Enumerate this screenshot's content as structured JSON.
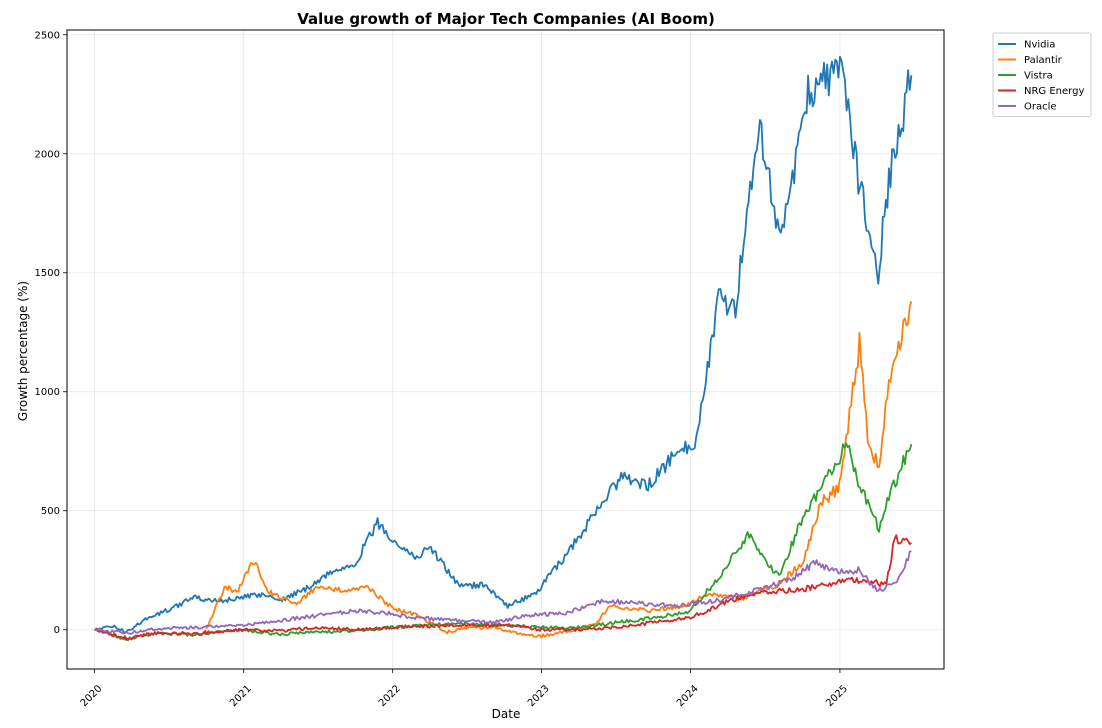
{
  "chart_data": {
    "type": "line",
    "title": "Value growth of Major Tech Companies (AI Boom)",
    "xlabel": "Date",
    "ylabel": "Growth percentage (%)",
    "xlim": [
      "2019-10-26",
      "2025-09-13"
    ],
    "ylim": [
      -165,
      2520
    ],
    "xticks": [
      "2020",
      "2021",
      "2022",
      "2023",
      "2024",
      "2025"
    ],
    "yticks": [
      0,
      500,
      1000,
      1500,
      2000,
      2500
    ],
    "grid": true,
    "legend_position": "upper-right-outside",
    "series": [
      {
        "name": "Nvidia",
        "color": "#1f77b4",
        "points": [
          [
            "2020-01-02",
            0
          ],
          [
            "2020-02-15",
            15
          ],
          [
            "2020-03-20",
            -10
          ],
          [
            "2020-05-01",
            40
          ],
          [
            "2020-07-01",
            85
          ],
          [
            "2020-09-01",
            135
          ],
          [
            "2020-10-15",
            120
          ],
          [
            "2020-12-15",
            130
          ],
          [
            "2021-02-15",
            150
          ],
          [
            "2021-04-01",
            125
          ],
          [
            "2021-06-01",
            170
          ],
          [
            "2021-08-01",
            240
          ],
          [
            "2021-10-01",
            280
          ],
          [
            "2021-11-25",
            450
          ],
          [
            "2022-01-01",
            380
          ],
          [
            "2022-03-01",
            300
          ],
          [
            "2022-04-01",
            350
          ],
          [
            "2022-06-15",
            180
          ],
          [
            "2022-08-15",
            190
          ],
          [
            "2022-10-10",
            100
          ],
          [
            "2022-12-15",
            150
          ],
          [
            "2023-02-15",
            280
          ],
          [
            "2023-05-25",
            520
          ],
          [
            "2023-07-15",
            640
          ],
          [
            "2023-09-15",
            600
          ],
          [
            "2023-11-15",
            720
          ],
          [
            "2024-01-15",
            800
          ],
          [
            "2024-03-10",
            1400
          ],
          [
            "2024-04-20",
            1350
          ],
          [
            "2024-06-15",
            2150
          ],
          [
            "2024-08-05",
            1650
          ],
          [
            "2024-09-15",
            1950
          ],
          [
            "2024-10-15",
            2250
          ],
          [
            "2024-11-15",
            2300
          ],
          [
            "2025-01-05",
            2350
          ],
          [
            "2025-02-15",
            1900
          ],
          [
            "2025-04-05",
            1500
          ],
          [
            "2025-05-01",
            1900
          ],
          [
            "2025-06-25",
            2330
          ]
        ]
      },
      {
        "name": "Palantir",
        "color": "#ff7f0e",
        "points": [
          [
            "2020-09-30",
            0
          ],
          [
            "2020-11-15",
            180
          ],
          [
            "2020-12-15",
            160
          ],
          [
            "2021-01-27",
            290
          ],
          [
            "2021-03-01",
            160
          ],
          [
            "2021-05-10",
            110
          ],
          [
            "2021-07-01",
            180
          ],
          [
            "2021-09-15",
            160
          ],
          [
            "2021-11-01",
            180
          ],
          [
            "2022-01-01",
            90
          ],
          [
            "2022-03-01",
            60
          ],
          [
            "2022-05-15",
            -10
          ],
          [
            "2022-07-01",
            10
          ],
          [
            "2022-09-01",
            10
          ],
          [
            "2022-12-20",
            -30
          ],
          [
            "2023-03-15",
            -5
          ],
          [
            "2023-05-15",
            30
          ],
          [
            "2023-06-20",
            100
          ],
          [
            "2023-09-15",
            80
          ],
          [
            "2023-12-15",
            100
          ],
          [
            "2024-02-15",
            150
          ],
          [
            "2024-05-01",
            130
          ],
          [
            "2024-08-01",
            190
          ],
          [
            "2024-10-01",
            280
          ],
          [
            "2024-11-15",
            530
          ],
          [
            "2024-12-31",
            600
          ],
          [
            "2025-02-18",
            1200
          ],
          [
            "2025-03-10",
            800
          ],
          [
            "2025-04-07",
            680
          ],
          [
            "2025-05-01",
            1050
          ],
          [
            "2025-06-25",
            1380
          ]
        ]
      },
      {
        "name": "Vistra",
        "color": "#2ca02c",
        "points": [
          [
            "2020-01-02",
            0
          ],
          [
            "2020-03-20",
            -40
          ],
          [
            "2020-06-01",
            -15
          ],
          [
            "2020-09-01",
            -20
          ],
          [
            "2021-01-01",
            0
          ],
          [
            "2021-04-01",
            -20
          ],
          [
            "2021-07-01",
            -10
          ],
          [
            "2021-10-01",
            -5
          ],
          [
            "2022-01-01",
            10
          ],
          [
            "2022-04-01",
            20
          ],
          [
            "2022-07-01",
            25
          ],
          [
            "2022-10-01",
            20
          ],
          [
            "2023-01-01",
            10
          ],
          [
            "2023-04-01",
            10
          ],
          [
            "2023-07-01",
            30
          ],
          [
            "2023-10-01",
            50
          ],
          [
            "2024-01-01",
            80
          ],
          [
            "2024-03-01",
            200
          ],
          [
            "2024-05-20",
            400
          ],
          [
            "2024-07-01",
            300
          ],
          [
            "2024-08-05",
            220
          ],
          [
            "2024-09-20",
            420
          ],
          [
            "2024-11-15",
            600
          ],
          [
            "2025-01-20",
            780
          ],
          [
            "2025-02-15",
            620
          ],
          [
            "2025-04-07",
            420
          ],
          [
            "2025-05-01",
            560
          ],
          [
            "2025-06-25",
            780
          ]
        ]
      },
      {
        "name": "NRG Energy",
        "color": "#d62728",
        "points": [
          [
            "2020-01-02",
            0
          ],
          [
            "2020-03-20",
            -35
          ],
          [
            "2020-06-01",
            -15
          ],
          [
            "2020-09-01",
            -15
          ],
          [
            "2021-01-01",
            0
          ],
          [
            "2021-04-01",
            -5
          ],
          [
            "2021-07-01",
            10
          ],
          [
            "2021-10-01",
            0
          ],
          [
            "2022-01-01",
            10
          ],
          [
            "2022-04-01",
            15
          ],
          [
            "2022-07-01",
            20
          ],
          [
            "2022-10-01",
            20
          ],
          [
            "2023-01-01",
            0
          ],
          [
            "2023-04-01",
            0
          ],
          [
            "2023-07-01",
            10
          ],
          [
            "2023-10-01",
            30
          ],
          [
            "2024-01-01",
            50
          ],
          [
            "2024-04-01",
            120
          ],
          [
            "2024-07-01",
            160
          ],
          [
            "2024-10-01",
            170
          ],
          [
            "2025-01-15",
            210
          ],
          [
            "2025-03-15",
            200
          ],
          [
            "2025-04-25",
            190
          ],
          [
            "2025-05-15",
            380
          ],
          [
            "2025-06-25",
            365
          ]
        ]
      },
      {
        "name": "Oracle",
        "color": "#9467bd",
        "points": [
          [
            "2020-01-02",
            0
          ],
          [
            "2020-03-20",
            -15
          ],
          [
            "2020-06-01",
            5
          ],
          [
            "2020-09-01",
            10
          ],
          [
            "2021-01-01",
            20
          ],
          [
            "2021-04-01",
            40
          ],
          [
            "2021-07-01",
            60
          ],
          [
            "2021-10-01",
            80
          ],
          [
            "2021-12-15",
            70
          ],
          [
            "2022-03-01",
            50
          ],
          [
            "2022-06-01",
            40
          ],
          [
            "2022-09-01",
            30
          ],
          [
            "2022-12-01",
            60
          ],
          [
            "2023-03-01",
            70
          ],
          [
            "2023-06-01",
            120
          ],
          [
            "2023-09-01",
            110
          ],
          [
            "2023-12-01",
            100
          ],
          [
            "2024-03-01",
            120
          ],
          [
            "2024-06-01",
            160
          ],
          [
            "2024-09-01",
            210
          ],
          [
            "2024-11-01",
            280
          ],
          [
            "2025-01-01",
            240
          ],
          [
            "2025-02-15",
            250
          ],
          [
            "2025-04-05",
            160
          ],
          [
            "2025-05-20",
            210
          ],
          [
            "2025-06-25",
            330
          ]
        ]
      }
    ]
  }
}
